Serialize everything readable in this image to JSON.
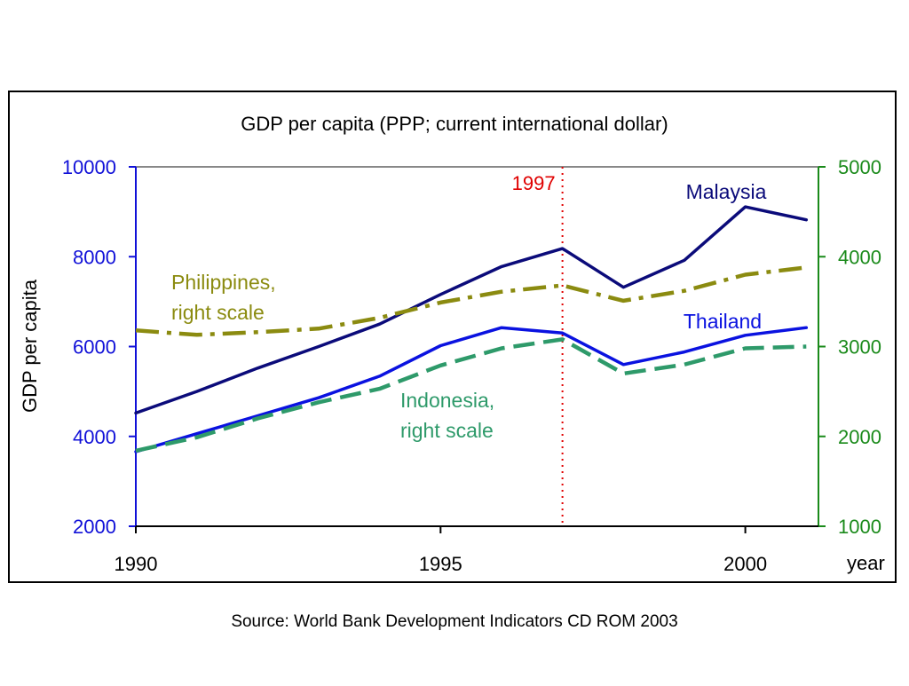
{
  "chart_data": {
    "type": "line",
    "title": "GDP per capita (PPP; current international dollar)",
    "ylabel": "GDP per capita",
    "xlabel": "year",
    "source": "Source: World Bank Development Indicators CD ROM 2003",
    "x": [
      1990,
      1991,
      1992,
      1993,
      1994,
      1995,
      1996,
      1997,
      1998,
      1999,
      2000,
      2001
    ],
    "xlim": [
      1990,
      2001.2
    ],
    "x_ticks": [
      "1990",
      "1995",
      "2000"
    ],
    "x_tick_values": [
      1990,
      1995,
      2000
    ],
    "ylim_left": [
      2000,
      10000
    ],
    "y_ticks_left": [
      "2000",
      "4000",
      "6000",
      "8000",
      "10000"
    ],
    "y_tick_values_left": [
      2000,
      4000,
      6000,
      8000,
      10000
    ],
    "ylim_right": [
      1000,
      5000
    ],
    "y_ticks_right": [
      "1000",
      "2000",
      "3000",
      "4000",
      "5000"
    ],
    "y_tick_values_right": [
      1000,
      2000,
      3000,
      4000,
      5000
    ],
    "marker": {
      "x": 1997,
      "label": "1997",
      "color": "#e00000"
    },
    "series": [
      {
        "name": "Malaysia",
        "axis": "left",
        "color": "#0b0b7a",
        "style": "solid",
        "label_lines": [
          "Malaysia"
        ],
        "values": [
          4520,
          5000,
          5520,
          6000,
          6500,
          7160,
          7780,
          8180,
          7320,
          7920,
          9110,
          8820
        ]
      },
      {
        "name": "Thailand",
        "axis": "left",
        "color": "#0a12e0",
        "style": "solid",
        "label_lines": [
          "Thailand"
        ],
        "values": [
          3660,
          4060,
          4460,
          4860,
          5340,
          6020,
          6420,
          6300,
          5600,
          5880,
          6250,
          6420
        ]
      },
      {
        "name": "Philippines",
        "axis": "right",
        "color": "#8b8b10",
        "style": "dashdot",
        "label_lines": [
          "Philippines,",
          "right scale"
        ],
        "values": [
          3180,
          3130,
          3160,
          3200,
          3320,
          3490,
          3610,
          3680,
          3510,
          3620,
          3800,
          3880
        ]
      },
      {
        "name": "Indonesia",
        "axis": "right",
        "color": "#2e9a6a",
        "style": "dashed",
        "label_lines": [
          "Indonesia,",
          "right scale"
        ],
        "values": [
          1840,
          1990,
          2200,
          2380,
          2530,
          2790,
          2980,
          3080,
          2700,
          2800,
          2980,
          3000
        ]
      }
    ],
    "colors": {
      "left_axis": "#1010d8",
      "right_axis": "#1a8a1a",
      "frame": "#000000",
      "top_border": "#888888"
    },
    "grid": false
  }
}
